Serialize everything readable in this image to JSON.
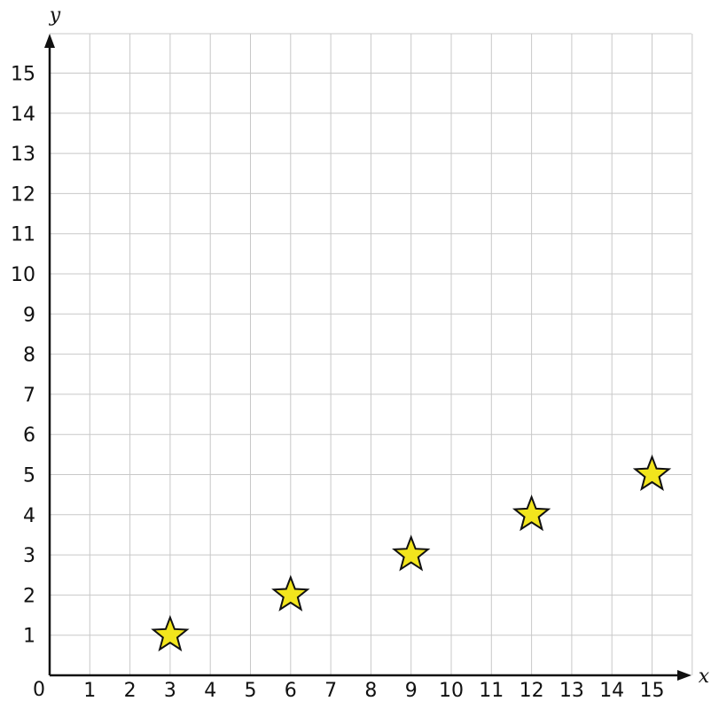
{
  "chart_data": {
    "type": "scatter",
    "xlabel": "x",
    "ylabel": "y",
    "xlim": [
      0,
      15
    ],
    "ylim": [
      0,
      15
    ],
    "origin_label": "0",
    "x_ticks": [
      "1",
      "2",
      "3",
      "4",
      "5",
      "6",
      "7",
      "8",
      "9",
      "10",
      "11",
      "12",
      "13",
      "14",
      "15"
    ],
    "y_ticks": [
      "1",
      "2",
      "3",
      "4",
      "5",
      "6",
      "7",
      "8",
      "9",
      "10",
      "11",
      "12",
      "13",
      "14",
      "15"
    ],
    "grid": true,
    "marker": "star",
    "marker_color": "#f2e51d",
    "marker_outline": "#111111",
    "series": [
      {
        "x": [
          3,
          6,
          9,
          12,
          15
        ],
        "y": [
          1,
          2,
          3,
          4,
          5
        ]
      }
    ]
  }
}
